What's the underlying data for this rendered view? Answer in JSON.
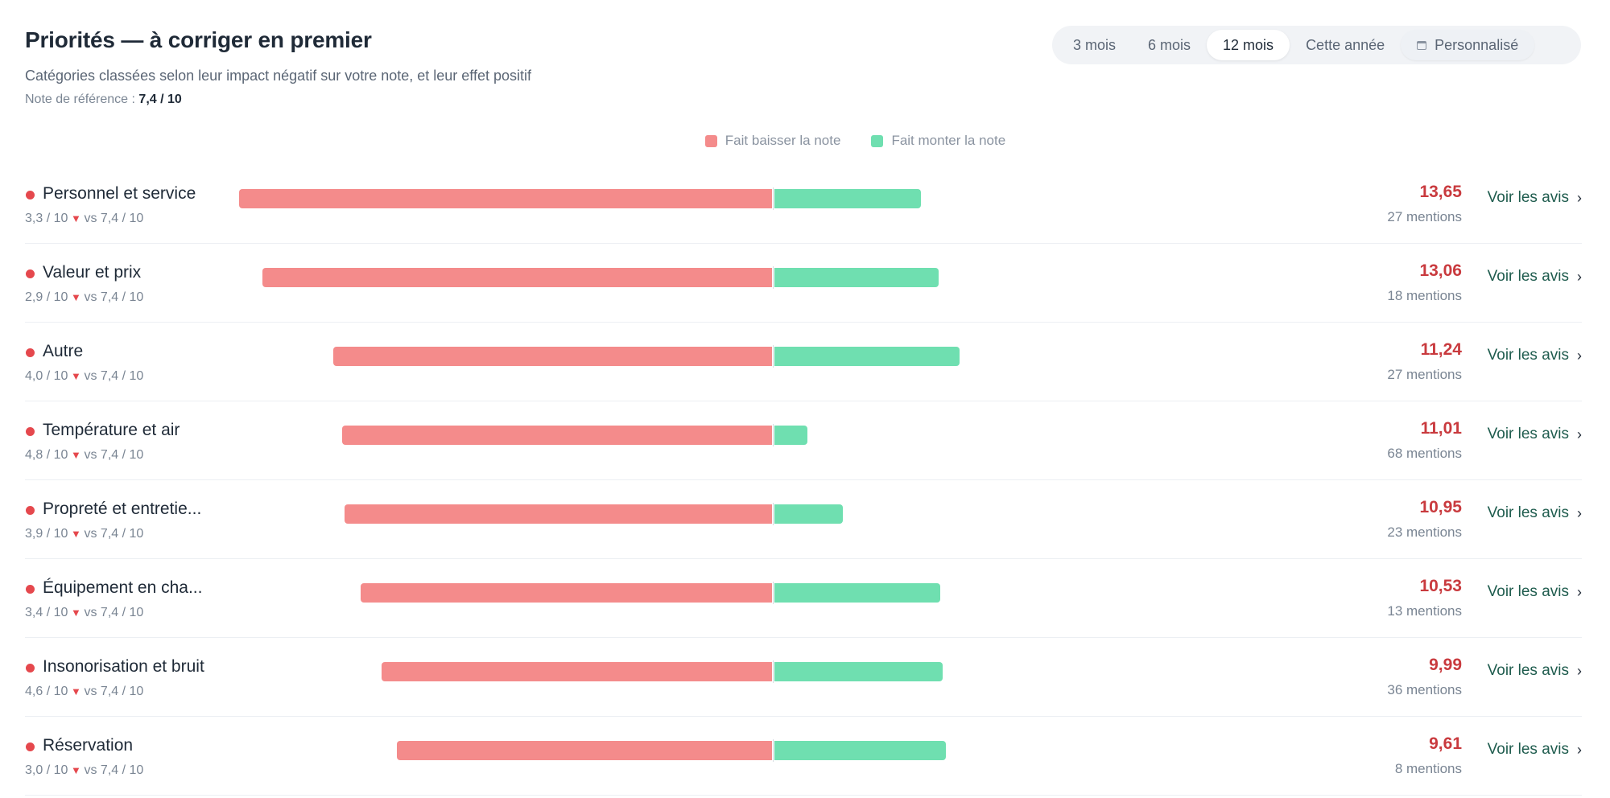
{
  "header": {
    "title": "Priorités — à corriger en premier",
    "subtitle": "Catégories classées selon leur impact négatif sur votre note, et leur effet positif",
    "ref_label": "Note de référence :",
    "ref_value": "7,4 / 10"
  },
  "periods": [
    {
      "label": "3 mois",
      "active": false
    },
    {
      "label": "6 mois",
      "active": false
    },
    {
      "label": "12 mois",
      "active": true
    },
    {
      "label": "Cette année",
      "active": false
    },
    {
      "label": "Personnalisé",
      "active": false,
      "icon": "calendar-icon"
    }
  ],
  "colors": {
    "negative": "#f48b8b",
    "positive": "#6fdfb0",
    "score": "#c93a3e",
    "link": "#1f5c4e"
  },
  "row_action_label": "Voir les avis",
  "chart_data": {
    "type": "bar",
    "legend": [
      {
        "name": "Fait baisser la note",
        "color": "#f48b8b"
      },
      {
        "name": "Fait monter la note",
        "color": "#6fdfb0"
      }
    ],
    "legend_position": "top-center",
    "categories": [
      "Personnel et service",
      "Valeur et prix",
      "Autre",
      "Température et air",
      "Propreté et entretie...",
      "Équipement en cha...",
      "Insonorisation et bruit",
      "Réservation"
    ],
    "series": [
      {
        "name": "Fait baisser la note",
        "values": [
          13.65,
          13.06,
          11.24,
          11.01,
          10.95,
          10.53,
          9.99,
          9.61
        ]
      },
      {
        "name": "Fait monter la note",
        "values": [
          3.75,
          4.2,
          4.75,
          0.85,
          1.75,
          4.25,
          4.3,
          4.4
        ]
      }
    ],
    "scores_label": [
      "13,65",
      "13,06",
      "11,24",
      "11,01",
      "10,95",
      "10,53",
      "9,99",
      "9,61"
    ],
    "mentions_label": [
      "27 mentions",
      "18 mentions",
      "27 mentions",
      "68 mentions",
      "23 mentions",
      "13 mentions",
      "36 mentions",
      "8 mentions"
    ],
    "ratings_label": [
      "3,3 / 10",
      "2,9 / 10",
      "4,0 / 10",
      "4,8 / 10",
      "3,9 / 10",
      "3,4 / 10",
      "4,6 / 10",
      "3,0 / 10"
    ],
    "reference_label": "vs 7,4 / 10",
    "grid": false
  }
}
